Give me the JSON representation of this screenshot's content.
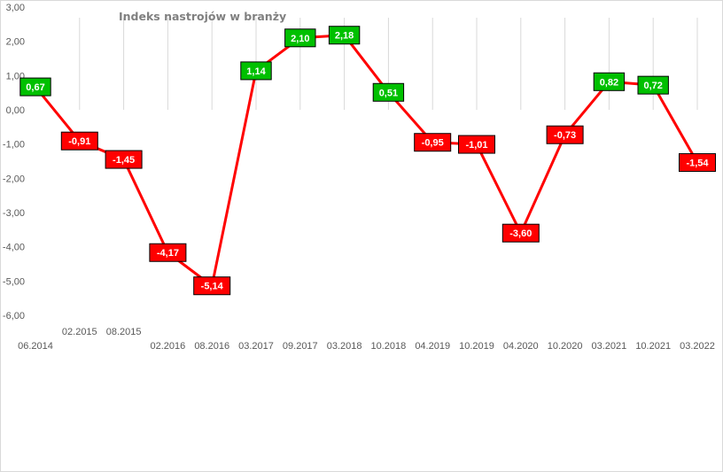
{
  "chart_data": {
    "type": "line",
    "title": "Indeks nastrojów w branży",
    "xlabel": "",
    "ylabel": "",
    "x": [
      "06.2014",
      "02.2015",
      "08.2015",
      "02.2016",
      "08.2016",
      "03.2017",
      "09.2017",
      "03.2018",
      "10.2018",
      "04.2019",
      "10.2019",
      "04.2020",
      "10.2020",
      "03.2021",
      "10.2021",
      "03.2022"
    ],
    "series": [
      {
        "values": [
          0.67,
          -0.91,
          -1.45,
          -4.17,
          -5.14,
          1.14,
          2.1,
          2.18,
          0.51,
          -0.95,
          -1.01,
          -3.6,
          -0.73,
          0.82,
          0.72,
          -1.54
        ]
      }
    ],
    "data_labels": [
      "0,67",
      "-0,91",
      "-1,45",
      "-4,17",
      "-5,14",
      "1,14",
      "2,10",
      "2,18",
      "0,51",
      "-0,95",
      "-1,01",
      "-3,60",
      "-0,73",
      "0,82",
      "0,72",
      "-1,54"
    ],
    "yticks": [
      "3,00",
      "2,00",
      "1,00",
      "0,00",
      "-1,00",
      "-2,00",
      "-3,00",
      "-4,00",
      "-5,00",
      "-6,00"
    ],
    "ylim": [
      -6,
      3
    ],
    "grid": "vertical",
    "legend": "none",
    "colors": {
      "line": "#ff0000",
      "positive_label": "#00c000",
      "negative_label": "#ff0000",
      "gridline": "#d9d9d9"
    }
  }
}
